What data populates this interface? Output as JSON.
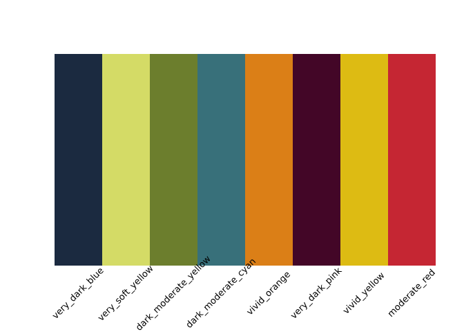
{
  "figure": {
    "background": "#ffffff",
    "label_color": "#000000"
  },
  "chart_data": {
    "type": "bar",
    "title": "",
    "xlabel": "",
    "ylabel": "",
    "categories": [
      "very_dark_blue",
      "very_soft_yellow",
      "dark_moderate_yellow",
      "dark_moderate_cyan",
      "vivid_orange",
      "very_dark_pink",
      "vivid_yellow",
      "moderate_red"
    ],
    "values": [
      1,
      1,
      1,
      1,
      1,
      1,
      1,
      1
    ],
    "colors": [
      "#1B2A40",
      "#D4DB66",
      "#6C7E2D",
      "#38707A",
      "#DB7F17",
      "#430627",
      "#DDBB13",
      "#C52633"
    ],
    "ylim": [
      0,
      1
    ],
    "grid": false,
    "legend": null,
    "tick_label_rotation_deg": 45,
    "notes": "color palette swatch chart; eight equal-height adjacent bars; rotated x tick labels; no axes or spines"
  }
}
